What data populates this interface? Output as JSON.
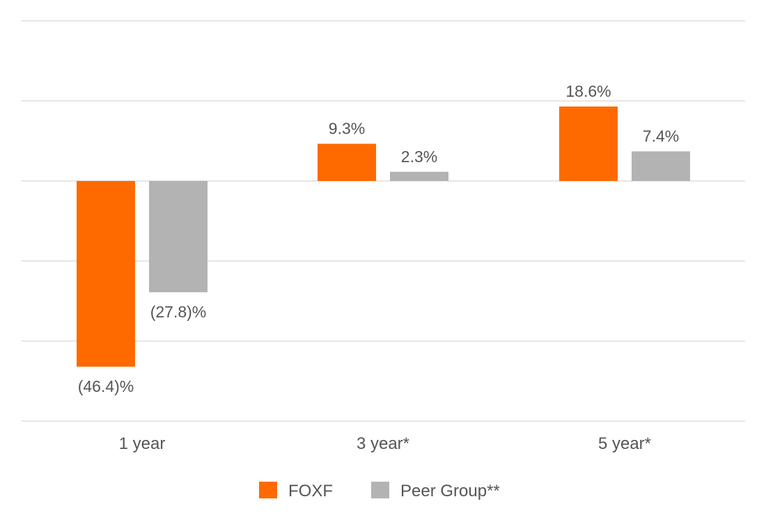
{
  "chart_data": {
    "type": "bar",
    "title": "",
    "xlabel": "",
    "ylabel": "",
    "categories": [
      "1 year",
      "3 year*",
      "5 year*"
    ],
    "series": [
      {
        "name": "FOXF",
        "color": "#ff6a00",
        "values": [
          -46.4,
          9.3,
          18.6
        ],
        "labels": [
          "(46.4)%",
          "9.3%",
          "18.6%"
        ]
      },
      {
        "name": "Peer Group**",
        "color": "#b3b3b3",
        "values": [
          -27.8,
          2.3,
          7.4
        ],
        "labels": [
          "(27.8)%",
          "2.3%",
          "7.4%"
        ]
      }
    ],
    "ylim": [
      -60,
      40
    ],
    "gridlines": [
      -60,
      -40,
      -20,
      0,
      20,
      40
    ],
    "grid": true,
    "legend": "bottom-center",
    "grid_color": "#e6e6e6",
    "text_color": "#555555"
  }
}
